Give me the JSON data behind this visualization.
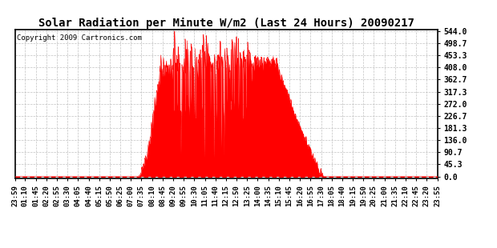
{
  "title": "Solar Radiation per Minute W/m2 (Last 24 Hours) 20090217",
  "copyright_text": "Copyright 2009 Cartronics.com",
  "yticks": [
    0.0,
    45.3,
    90.7,
    136.0,
    181.3,
    226.7,
    272.0,
    317.3,
    362.7,
    408.0,
    453.3,
    498.7,
    544.0
  ],
  "ymax": 544.0,
  "ymin": 0.0,
  "fill_color": "#ff0000",
  "line_color": "#ff0000",
  "background_color": "#ffffff",
  "grid_color": "#bbbbbb",
  "title_fontsize": 10,
  "copyright_fontsize": 6.5,
  "tick_fontsize": 7,
  "x_labels": [
    "23:59",
    "01:10",
    "01:45",
    "02:20",
    "02:55",
    "03:30",
    "04:05",
    "04:40",
    "05:15",
    "05:50",
    "06:25",
    "07:00",
    "07:35",
    "08:10",
    "08:45",
    "09:20",
    "09:55",
    "10:30",
    "11:05",
    "11:40",
    "12:15",
    "12:50",
    "13:25",
    "14:00",
    "14:35",
    "15:10",
    "15:45",
    "16:20",
    "16:55",
    "17:30",
    "18:05",
    "18:40",
    "19:15",
    "19:50",
    "20:25",
    "21:00",
    "21:35",
    "22:10",
    "22:45",
    "23:20",
    "23:55"
  ]
}
